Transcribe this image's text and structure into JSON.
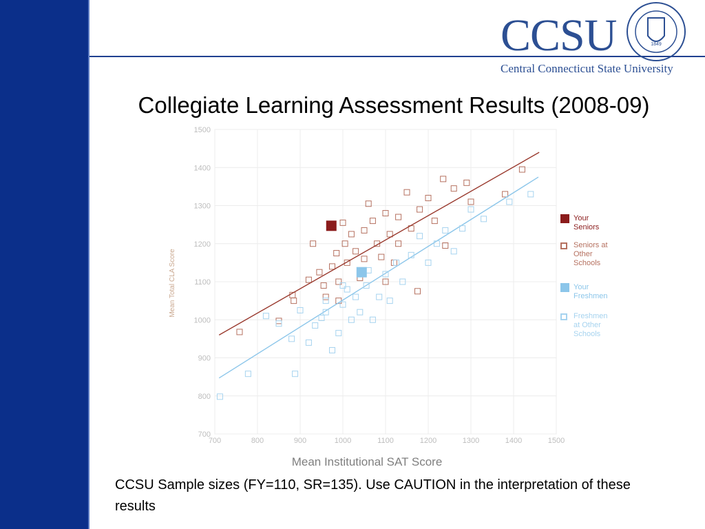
{
  "header": {
    "logo": "CCSU",
    "university": "Central Connecticut State University",
    "seal_year": "1849"
  },
  "title": "Collegiate Learning Assessment Results (2008-09)",
  "chart_data": {
    "type": "scatter",
    "ylabel": "Mean Total CLA Score",
    "xlabel": "Mean Institutional SAT Score",
    "xlim": [
      700,
      1500
    ],
    "ylim": [
      700,
      1500
    ],
    "xticks": [
      700,
      800,
      900,
      1000,
      1100,
      1200,
      1300,
      1400,
      1500
    ],
    "yticks": [
      700,
      800,
      900,
      1000,
      1100,
      1200,
      1300,
      1400,
      1500
    ],
    "grid": true,
    "series": [
      {
        "name": "Your Seniors",
        "color": "#8b1c1c",
        "filled": true,
        "x": [
          973
        ],
        "values": [
          1247
        ]
      },
      {
        "name": "Seniors at Other Schools",
        "color": "#b5705f",
        "filled": false,
        "x": [
          758,
          850,
          882,
          885,
          920,
          930,
          945,
          955,
          960,
          975,
          985,
          990,
          1000,
          1005,
          1010,
          1020,
          1030,
          1040,
          1050,
          1060,
          1070,
          1080,
          1090,
          1100,
          1110,
          1120,
          1130,
          1150,
          1160,
          1175,
          1180,
          1200,
          1215,
          1235,
          1240,
          1260,
          1290,
          1300,
          1380,
          1420,
          1130,
          1050,
          990,
          1100
        ],
        "values": [
          968,
          997,
          1065,
          1050,
          1105,
          1200,
          1125,
          1090,
          1060,
          1140,
          1175,
          1100,
          1255,
          1200,
          1150,
          1225,
          1180,
          1110,
          1235,
          1305,
          1260,
          1200,
          1165,
          1280,
          1225,
          1150,
          1270,
          1335,
          1240,
          1075,
          1290,
          1320,
          1260,
          1370,
          1195,
          1345,
          1360,
          1310,
          1330,
          1395,
          1200,
          1160,
          1050,
          1100
        ]
      },
      {
        "name": "Your Freshmen",
        "color": "#8cc6ea",
        "filled": true,
        "x": [
          1044
        ],
        "values": [
          1125
        ]
      },
      {
        "name": "Freshmen at Other Schools",
        "color": "#a6d3ef",
        "filled": false,
        "x": [
          712,
          778,
          820,
          850,
          880,
          888,
          900,
          920,
          935,
          950,
          960,
          975,
          990,
          1000,
          1010,
          1020,
          1030,
          1040,
          1055,
          1070,
          1085,
          1100,
          1110,
          1125,
          1140,
          1160,
          1180,
          1200,
          1220,
          1240,
          1260,
          1280,
          1300,
          1330,
          1390,
          1440,
          1060,
          1000,
          960
        ],
        "values": [
          798,
          858,
          1010,
          990,
          950,
          858,
          1025,
          940,
          985,
          1005,
          1020,
          920,
          965,
          1040,
          1080,
          1000,
          1060,
          1020,
          1090,
          1000,
          1060,
          1120,
          1050,
          1150,
          1100,
          1170,
          1220,
          1150,
          1200,
          1235,
          1180,
          1240,
          1290,
          1265,
          1310,
          1330,
          1130,
          1090,
          1050
        ]
      }
    ],
    "fit_lines": [
      {
        "color": "#9a3a2e",
        "x": [
          710,
          1460
        ],
        "values": [
          960,
          1440
        ]
      },
      {
        "color": "#8cc6ea",
        "x": [
          710,
          1458
        ],
        "values": [
          847,
          1375
        ]
      }
    ]
  },
  "footer": "CCSU Sample sizes (FY=110, SR=135). Use CAUTION in the interpretation of these results"
}
